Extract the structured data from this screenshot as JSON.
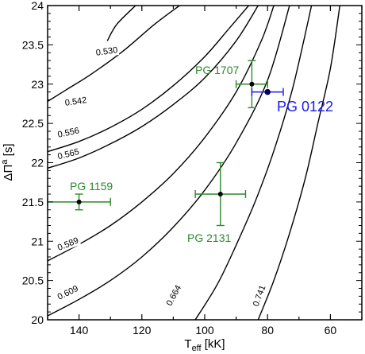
{
  "chart_data": {
    "type": "scatter",
    "title": "",
    "xlabel": {
      "main": "T",
      "sub": "eff",
      "unit": " [kK]"
    },
    "ylabel": {
      "main": "ΔΠ",
      "sup": "a",
      "unit": " [s]"
    },
    "xlim": [
      150,
      50
    ],
    "ylim": [
      20,
      24
    ],
    "x_reversed": true,
    "xticks": [
      140,
      120,
      100,
      80,
      60
    ],
    "yticks": [
      "20",
      "20.5",
      "21",
      "21.5",
      "22",
      "22.5",
      "23",
      "23.5",
      "24"
    ],
    "grid": false,
    "mass_tracks": [
      {
        "label": "0.530",
        "points": [
          [
            131,
            23.55
          ],
          [
            128,
            23.76
          ],
          [
            122,
            24.0
          ]
        ]
      },
      {
        "label": "0.542",
        "points": [
          [
            150,
            22.78
          ],
          [
            144,
            22.93
          ],
          [
            136,
            23.13
          ],
          [
            126,
            23.42
          ],
          [
            116,
            23.76
          ],
          [
            108,
            24.0
          ]
        ]
      },
      {
        "label": "0.556",
        "points": [
          [
            150,
            22.14
          ],
          [
            140,
            22.27
          ],
          [
            130,
            22.45
          ],
          [
            120,
            22.68
          ],
          [
            110,
            22.98
          ],
          [
            100,
            23.35
          ],
          [
            92,
            23.72
          ],
          [
            86,
            24.0
          ]
        ]
      },
      {
        "label": "0.565",
        "points": [
          [
            150,
            21.93
          ],
          [
            140,
            22.06
          ],
          [
            130,
            22.24
          ],
          [
            120,
            22.46
          ],
          [
            110,
            22.74
          ],
          [
            100,
            23.08
          ],
          [
            90,
            23.55
          ],
          [
            83,
            24.0
          ]
        ]
      },
      {
        "label": "0.589",
        "points": [
          [
            150,
            20.75
          ],
          [
            140,
            20.96
          ],
          [
            130,
            21.2
          ],
          [
            120,
            21.5
          ],
          [
            110,
            21.86
          ],
          [
            100,
            22.32
          ],
          [
            90,
            22.9
          ],
          [
            82,
            23.55
          ],
          [
            78,
            24.0
          ]
        ]
      },
      {
        "label": "0.609",
        "points": [
          [
            150,
            20.05
          ],
          [
            140,
            20.26
          ],
          [
            130,
            20.5
          ],
          [
            120,
            20.8
          ],
          [
            110,
            21.18
          ],
          [
            100,
            21.65
          ],
          [
            90,
            22.25
          ],
          [
            80,
            23.05
          ],
          [
            73,
            24.0
          ]
        ]
      },
      {
        "label": "0.664",
        "points": [
          [
            103,
            20.0
          ],
          [
            96,
            20.45
          ],
          [
            90,
            20.95
          ],
          [
            84,
            21.5
          ],
          [
            78,
            22.15
          ],
          [
            72,
            22.95
          ],
          [
            66,
            24.0
          ]
        ]
      },
      {
        "label": "0.741",
        "points": [
          [
            83,
            20.0
          ],
          [
            78,
            20.5
          ],
          [
            73,
            21.1
          ],
          [
            68,
            21.8
          ],
          [
            64,
            22.5
          ],
          [
            60,
            23.2
          ],
          [
            57,
            24.0
          ]
        ]
      }
    ],
    "stars": [
      {
        "name": "PG 1159",
        "teff": 140,
        "dpi": 21.5,
        "xerr": 10,
        "yerr": 0.1,
        "color": "#2a8a2a"
      },
      {
        "name": "PG 2131",
        "teff": 95,
        "dpi": 21.6,
        "xerr": 8,
        "yerr": 0.4,
        "color": "#2a8a2a"
      },
      {
        "name": "PG 1707",
        "teff": 85,
        "dpi": 23.0,
        "xerr": 5,
        "yerr": 0.3,
        "color": "#2a8a2a"
      },
      {
        "name": "PG 0122",
        "teff": 80,
        "dpi": 22.9,
        "xerr": 5,
        "yerr": 0.0,
        "color": "#1a1aee"
      }
    ]
  }
}
